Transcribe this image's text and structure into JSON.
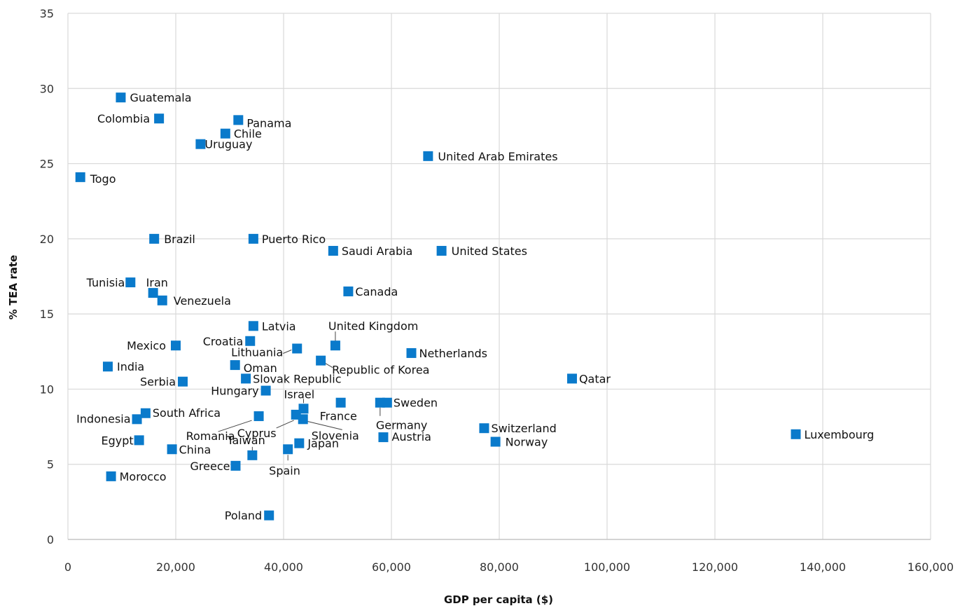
{
  "chart_data": {
    "type": "scatter",
    "title": "",
    "xlabel": "GDP per capita ($)",
    "ylabel": "% TEA rate",
    "xlim": [
      0,
      160000
    ],
    "ylim": [
      0,
      35
    ],
    "x_ticks": [
      "0",
      "20,000",
      "40,000",
      "60,000",
      "80,000",
      "100,000",
      "120,000",
      "140,000",
      "160,000"
    ],
    "y_ticks": [
      "0",
      "5",
      "10",
      "15",
      "20",
      "25",
      "30",
      "35"
    ],
    "grid": true,
    "marker_color": "#0a7acb",
    "points": [
      {
        "label": "Guatemala",
        "x": 9800,
        "y": 29.4
      },
      {
        "label": "Colombia",
        "x": 16900,
        "y": 28.0
      },
      {
        "label": "Panama",
        "x": 31600,
        "y": 27.9
      },
      {
        "label": "Chile",
        "x": 29200,
        "y": 27.0
      },
      {
        "label": "Uruguay",
        "x": 24600,
        "y": 26.3
      },
      {
        "label": "United Arab Emirates",
        "x": 66800,
        "y": 25.5
      },
      {
        "label": "Togo",
        "x": 2300,
        "y": 24.1
      },
      {
        "label": "Brazil",
        "x": 16000,
        "y": 20.0
      },
      {
        "label": "Puerto Rico",
        "x": 34400,
        "y": 20.0
      },
      {
        "label": "Saudi Arabia",
        "x": 49200,
        "y": 19.2
      },
      {
        "label": "United States",
        "x": 69300,
        "y": 19.2
      },
      {
        "label": "Tunisia",
        "x": 11600,
        "y": 17.1
      },
      {
        "label": "Iran",
        "x": 15800,
        "y": 16.4
      },
      {
        "label": "Venezuela",
        "x": 17500,
        "y": 15.9
      },
      {
        "label": "Canada",
        "x": 52000,
        "y": 16.5
      },
      {
        "label": "Latvia",
        "x": 34400,
        "y": 14.2
      },
      {
        "label": "Croatia",
        "x": 33800,
        "y": 13.2
      },
      {
        "label": "Mexico",
        "x": 20000,
        "y": 12.9
      },
      {
        "label": "United Kingdom",
        "x": 49600,
        "y": 12.9
      },
      {
        "label": "Lithuania",
        "x": 42500,
        "y": 12.7
      },
      {
        "label": "Netherlands",
        "x": 63700,
        "y": 12.4
      },
      {
        "label": "Republic of Korea",
        "x": 46900,
        "y": 11.9
      },
      {
        "label": "India",
        "x": 7400,
        "y": 11.5
      },
      {
        "label": "Oman",
        "x": 31000,
        "y": 11.6
      },
      {
        "label": "Slovak Republic",
        "x": 33000,
        "y": 10.7
      },
      {
        "label": "Qatar",
        "x": 93500,
        "y": 10.7
      },
      {
        "label": "Serbia",
        "x": 21300,
        "y": 10.5
      },
      {
        "label": "Hungary",
        "x": 36700,
        "y": 9.9
      },
      {
        "label": "France",
        "x": 50600,
        "y": 9.1
      },
      {
        "label": "Germany",
        "x": 57900,
        "y": 9.1
      },
      {
        "label": "Sweden",
        "x": 59200,
        "y": 9.1
      },
      {
        "label": "Israel",
        "x": 43700,
        "y": 8.7
      },
      {
        "label": "South Africa",
        "x": 14400,
        "y": 8.4
      },
      {
        "label": "Cyprus",
        "x": 42300,
        "y": 8.3
      },
      {
        "label": "Romania",
        "x": 35400,
        "y": 8.2
      },
      {
        "label": "Slovenia",
        "x": 43600,
        "y": 8.0
      },
      {
        "label": "Indonesia",
        "x": 12800,
        "y": 8.0
      },
      {
        "label": "Switzerland",
        "x": 77200,
        "y": 7.4
      },
      {
        "label": "Luxembourg",
        "x": 135000,
        "y": 7.0
      },
      {
        "label": "Austria",
        "x": 58500,
        "y": 6.8
      },
      {
        "label": "Egypt",
        "x": 13200,
        "y": 6.6
      },
      {
        "label": "Norway",
        "x": 79300,
        "y": 6.5
      },
      {
        "label": "Japan",
        "x": 42900,
        "y": 6.4
      },
      {
        "label": "China",
        "x": 19300,
        "y": 6.0
      },
      {
        "label": "Spain",
        "x": 40800,
        "y": 6.0
      },
      {
        "label": "Taiwan",
        "x": 34200,
        "y": 5.6
      },
      {
        "label": "Greece",
        "x": 31100,
        "y": 4.9
      },
      {
        "label": "Morocco",
        "x": 8000,
        "y": 4.2
      },
      {
        "label": "Poland",
        "x": 37300,
        "y": 1.6
      }
    ]
  }
}
